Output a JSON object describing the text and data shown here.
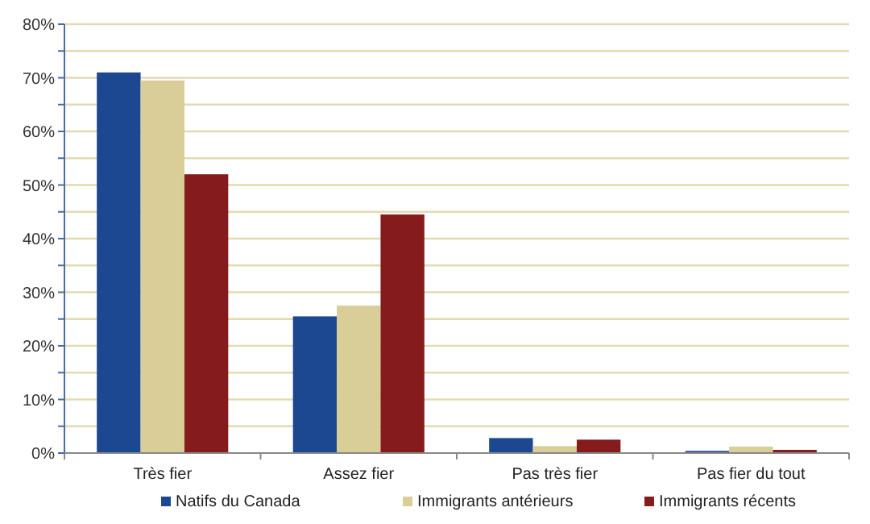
{
  "chart_data": {
    "type": "bar",
    "categories": [
      "Très fier",
      "Assez fier",
      "Pas très fier",
      "Pas fier du tout"
    ],
    "series": [
      {
        "name": "Natifs du Canada",
        "color": "#1b4890",
        "values": [
          71,
          25.5,
          2.8,
          0.4
        ]
      },
      {
        "name": "Immigrants antérieurs",
        "color": "#d9cd98",
        "values": [
          69.5,
          27.5,
          1.3,
          1.2
        ]
      },
      {
        "name": "Immigrants récents",
        "color": "#861b1d",
        "values": [
          52,
          44.5,
          2.5,
          0.6
        ]
      }
    ],
    "ylim": [
      0,
      80
    ],
    "yticks": [
      {
        "value": 0,
        "label": "0%"
      },
      {
        "value": 5,
        "label": null
      },
      {
        "value": 10,
        "label": "10%"
      },
      {
        "value": 15,
        "label": null
      },
      {
        "value": 20,
        "label": "20%"
      },
      {
        "value": 25,
        "label": null
      },
      {
        "value": 30,
        "label": "30%"
      },
      {
        "value": 35,
        "label": null
      },
      {
        "value": 40,
        "label": "40%"
      },
      {
        "value": 45,
        "label": null
      },
      {
        "value": 50,
        "label": "50%"
      },
      {
        "value": 55,
        "label": null
      },
      {
        "value": 60,
        "label": "60%"
      },
      {
        "value": 65,
        "label": null
      },
      {
        "value": 70,
        "label": "70%"
      },
      {
        "value": 75,
        "label": null
      },
      {
        "value": 80,
        "label": "80%"
      }
    ],
    "grid": "y",
    "legend": "bottom"
  }
}
